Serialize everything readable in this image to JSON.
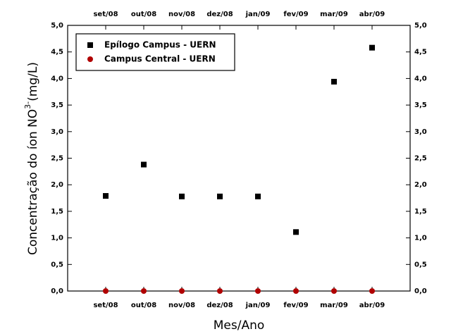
{
  "chart_data": {
    "type": "scatter",
    "categories": [
      "set/08",
      "out/08",
      "nov/08",
      "dez/08",
      "jan/09",
      "fev/09",
      "mar/09",
      "abr/09"
    ],
    "series": [
      {
        "name": "Epílogo Campus - UERN",
        "color": "#000000",
        "marker": "square",
        "values": [
          1.79,
          2.38,
          1.78,
          1.78,
          1.78,
          1.11,
          3.94,
          4.58
        ]
      },
      {
        "name": "Campus Central - UERN",
        "color": "#b00000",
        "marker": "circle",
        "values": [
          0,
          0,
          0,
          0,
          0,
          0,
          0,
          0
        ]
      }
    ],
    "ylim": [
      0,
      5
    ],
    "yticks": [
      {
        "value": 0,
        "label": "0,0"
      },
      {
        "value": 0.5,
        "label": "0,5"
      },
      {
        "value": 1,
        "label": "1,0"
      },
      {
        "value": 1.5,
        "label": "1,5"
      },
      {
        "value": 2,
        "label": "2,0"
      },
      {
        "value": 2.5,
        "label": "2,5"
      },
      {
        "value": 3,
        "label": "3,0"
      },
      {
        "value": 3.5,
        "label": "3,5"
      },
      {
        "value": 4,
        "label": "4,0"
      },
      {
        "value": 4.5,
        "label": "4,5"
      },
      {
        "value": 5,
        "label": "5,0"
      }
    ],
    "xlabel": "Mes/Ano",
    "ylabel": {
      "text": "Concentração do íon NO",
      "sup": "3-",
      "suffix": "(mg/L)"
    },
    "legend": "upper left"
  }
}
